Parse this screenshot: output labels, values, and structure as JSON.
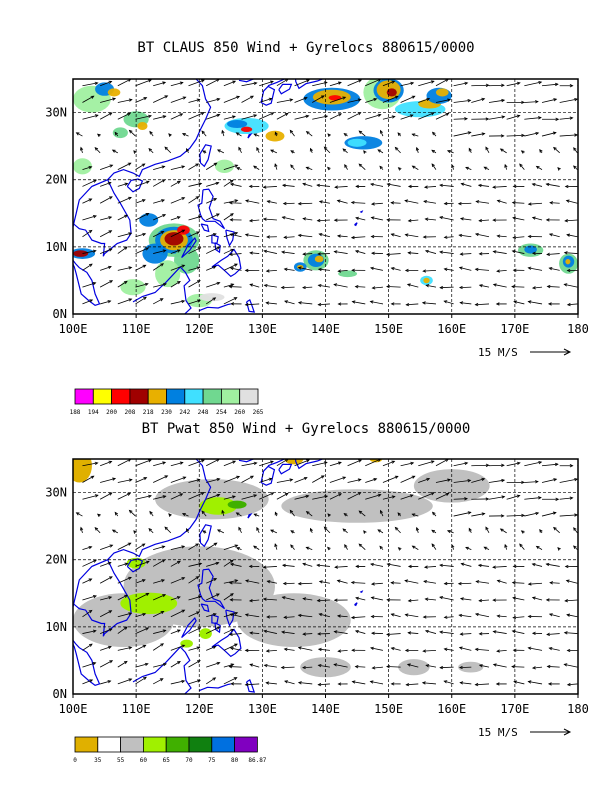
{
  "panels": [
    {
      "title": "BT CLAUS 850 Wind + Gyrelocs 880615/0000",
      "lon_labels": [
        "100E",
        "110E",
        "120E",
        "130E",
        "140E",
        "150E",
        "160E",
        "170E",
        "180"
      ],
      "lat_labels": [
        "0N",
        "10N",
        "20N",
        "30N"
      ],
      "vector_scale_label": "15 M/S",
      "colorbar": {
        "levels": [
          "188",
          "194",
          "200",
          "208",
          "218",
          "230",
          "242",
          "248",
          "254",
          "260",
          "265"
        ],
        "colors": [
          "#ff00ff",
          "#ffff00",
          "#ff0000",
          "#a00000",
          "#e8b000",
          "#0080e0",
          "#40e0ff",
          "#70d890",
          "#a0f0a0",
          "#e0e0e0"
        ]
      }
    },
    {
      "title": "BT Pwat 850 Wind + Gyrelocs 880615/0000",
      "lon_labels": [
        "100E",
        "110E",
        "120E",
        "130E",
        "140E",
        "150E",
        "160E",
        "170E",
        "180"
      ],
      "lat_labels": [
        "0N",
        "10N",
        "20N",
        "30N"
      ],
      "vector_scale_label": "15 M/S",
      "colorbar": {
        "levels": [
          "0",
          "35",
          "55",
          "60",
          "65",
          "70",
          "75",
          "80",
          "86.87"
        ],
        "colors": [
          "#e0b000",
          "#ffffff",
          "#c0c0c0",
          "#a0f000",
          "#40b000",
          "#108010",
          "#0070e0",
          "#8000c0"
        ]
      }
    }
  ],
  "map_extent": {
    "lon": [
      100,
      180
    ],
    "lat": [
      0,
      35
    ]
  }
}
